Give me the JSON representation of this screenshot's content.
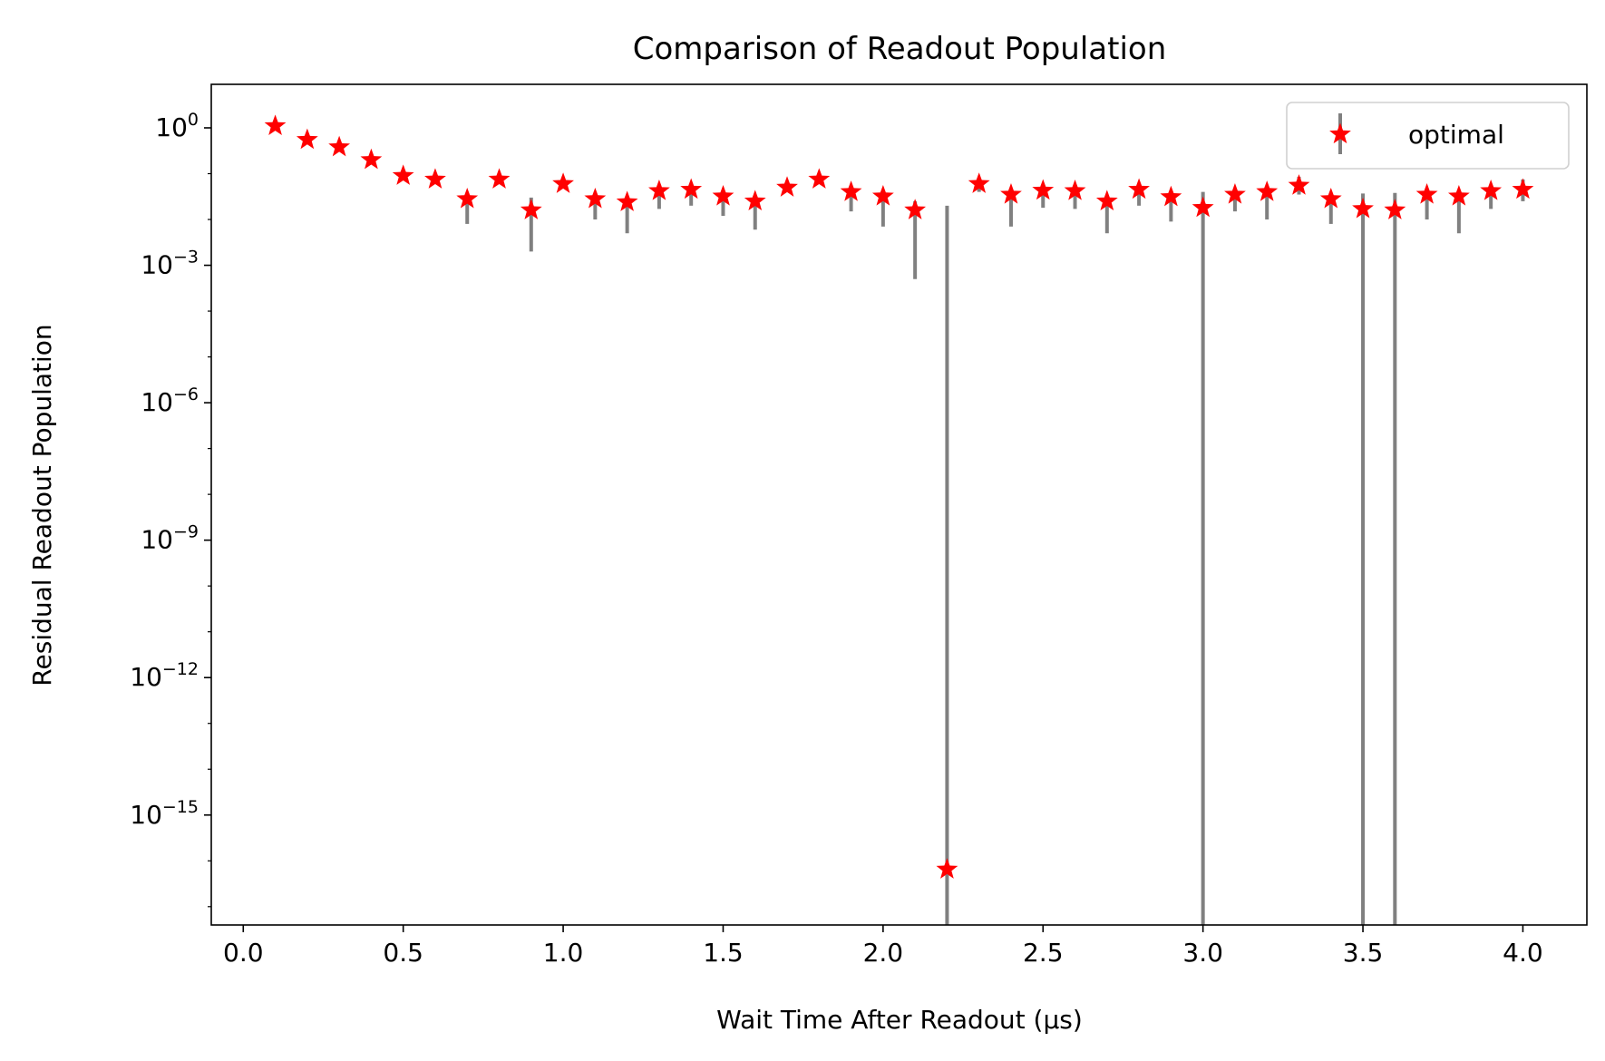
{
  "chart_data": {
    "type": "scatter",
    "title": "Comparison of Readout Population",
    "xlabel": "Wait Time After Readout (µs)",
    "ylabel": "Residual Readout Population",
    "xlim": [
      -0.1,
      4.2
    ],
    "ylim_log10": [
      -17.4,
      0.95
    ],
    "yscale": "log",
    "x_ticks": [
      0.0,
      0.5,
      1.0,
      1.5,
      2.0,
      2.5,
      3.0,
      3.5,
      4.0
    ],
    "x_tick_labels": [
      "0.0",
      "0.5",
      "1.0",
      "1.5",
      "2.0",
      "2.5",
      "3.0",
      "3.5",
      "4.0"
    ],
    "y_tick_exponents": [
      0,
      -3,
      -6,
      -9,
      -12,
      -15
    ],
    "y_tick_labels": [
      {
        "base": "10",
        "exp": "0"
      },
      {
        "base": "10",
        "exp": "−3"
      },
      {
        "base": "10",
        "exp": "−6"
      },
      {
        "base": "10",
        "exp": "−9"
      },
      {
        "base": "10",
        "exp": "−12"
      },
      {
        "base": "10",
        "exp": "−15"
      }
    ],
    "grid": false,
    "legend_position": "top-right",
    "series": [
      {
        "name": "optimal",
        "marker": "star",
        "color": "#ff0000",
        "errorbar_color": "#808080",
        "x": [
          0.1,
          0.2,
          0.3,
          0.4,
          0.5,
          0.6,
          0.7,
          0.8,
          0.9,
          1.0,
          1.1,
          1.2,
          1.3,
          1.4,
          1.5,
          1.6,
          1.7,
          1.8,
          1.9,
          2.0,
          2.1,
          2.2,
          2.3,
          2.4,
          2.5,
          2.6,
          2.7,
          2.8,
          2.9,
          3.0,
          3.1,
          3.2,
          3.3,
          3.4,
          3.5,
          3.6,
          3.7,
          3.8,
          3.9,
          4.0
        ],
        "y": [
          1.1,
          0.55,
          0.38,
          0.2,
          0.09,
          0.075,
          0.028,
          0.075,
          0.016,
          0.06,
          0.028,
          0.024,
          0.042,
          0.045,
          0.032,
          0.025,
          0.05,
          0.075,
          0.04,
          0.032,
          0.016,
          6.5e-17,
          0.06,
          0.035,
          0.043,
          0.042,
          0.025,
          0.045,
          0.031,
          0.018,
          0.035,
          0.04,
          0.055,
          0.028,
          0.017,
          0.016,
          0.035,
          0.032,
          0.042,
          0.045
        ],
        "err_low": [
          0,
          0,
          0,
          0,
          0,
          0,
          0.02,
          0,
          0.014,
          0,
          0.018,
          0.019,
          0.025,
          0.025,
          0.02,
          0.019,
          0,
          0,
          0.025,
          0.025,
          0.0155,
          6.5e-17,
          0.02,
          0.028,
          0.025,
          0.025,
          0.02,
          0.025,
          0.022,
          0.018,
          0.02,
          0.03,
          0.02,
          0.02,
          0.017,
          0.016,
          0.025,
          0.027,
          0.025,
          0.02
        ],
        "err_high": [
          0,
          0,
          0,
          0,
          0,
          0,
          0.005,
          0,
          0.014,
          0.01,
          0.005,
          0.004,
          0.005,
          0.005,
          0.005,
          0.005,
          0,
          0,
          0.005,
          0.005,
          0.009,
          0.02,
          0.005,
          0.005,
          0.005,
          0.005,
          0.005,
          0.005,
          0.005,
          0.022,
          0.005,
          0.01,
          0.03,
          0.005,
          0.02,
          0.022,
          0.005,
          0.005,
          0.01,
          0.03
        ]
      }
    ]
  }
}
